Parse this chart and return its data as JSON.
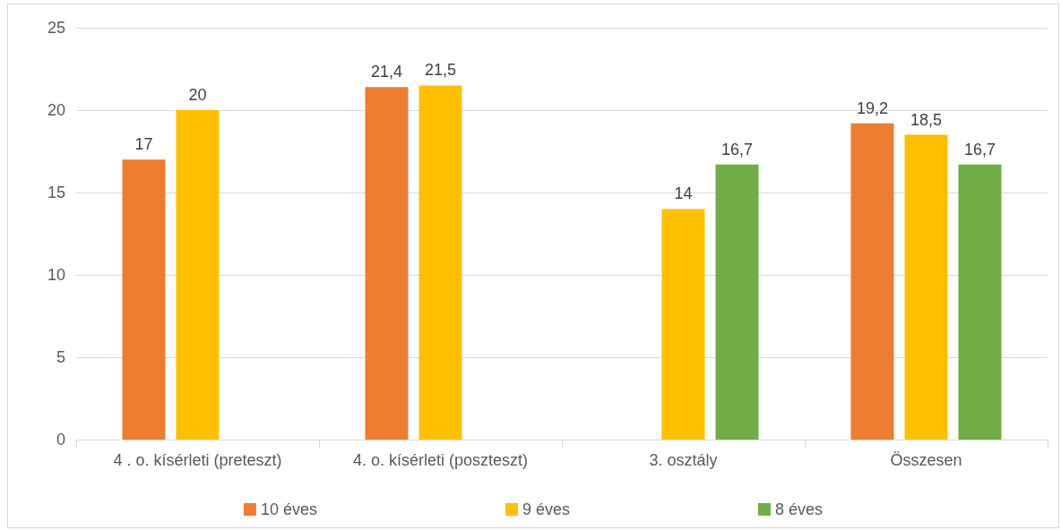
{
  "chart_data": {
    "type": "bar",
    "categories": [
      "4 . o. kísérleti (preteszt)",
      "4. o. kísérleti (poszteszt)",
      "3. osztály",
      "Összesen"
    ],
    "series": [
      {
        "name": "10 éves",
        "color": "#ed7d31",
        "values": [
          17,
          21.4,
          null,
          19.2
        ],
        "value_labels": [
          "17",
          "21,4",
          null,
          "19,2"
        ]
      },
      {
        "name": "9 éves",
        "color": "#ffc000",
        "values": [
          20,
          21.5,
          14,
          18.5
        ],
        "value_labels": [
          "20",
          "21,5",
          "14",
          "18,5"
        ]
      },
      {
        "name": "8 éves",
        "color": "#70ad47",
        "values": [
          null,
          null,
          16.7,
          16.7
        ],
        "value_labels": [
          null,
          null,
          "16,7",
          "16,7"
        ]
      }
    ],
    "ylim": [
      0,
      25
    ],
    "yticks": [
      0,
      5,
      10,
      15,
      20,
      25
    ],
    "grid": "y",
    "legend": "bottom"
  }
}
